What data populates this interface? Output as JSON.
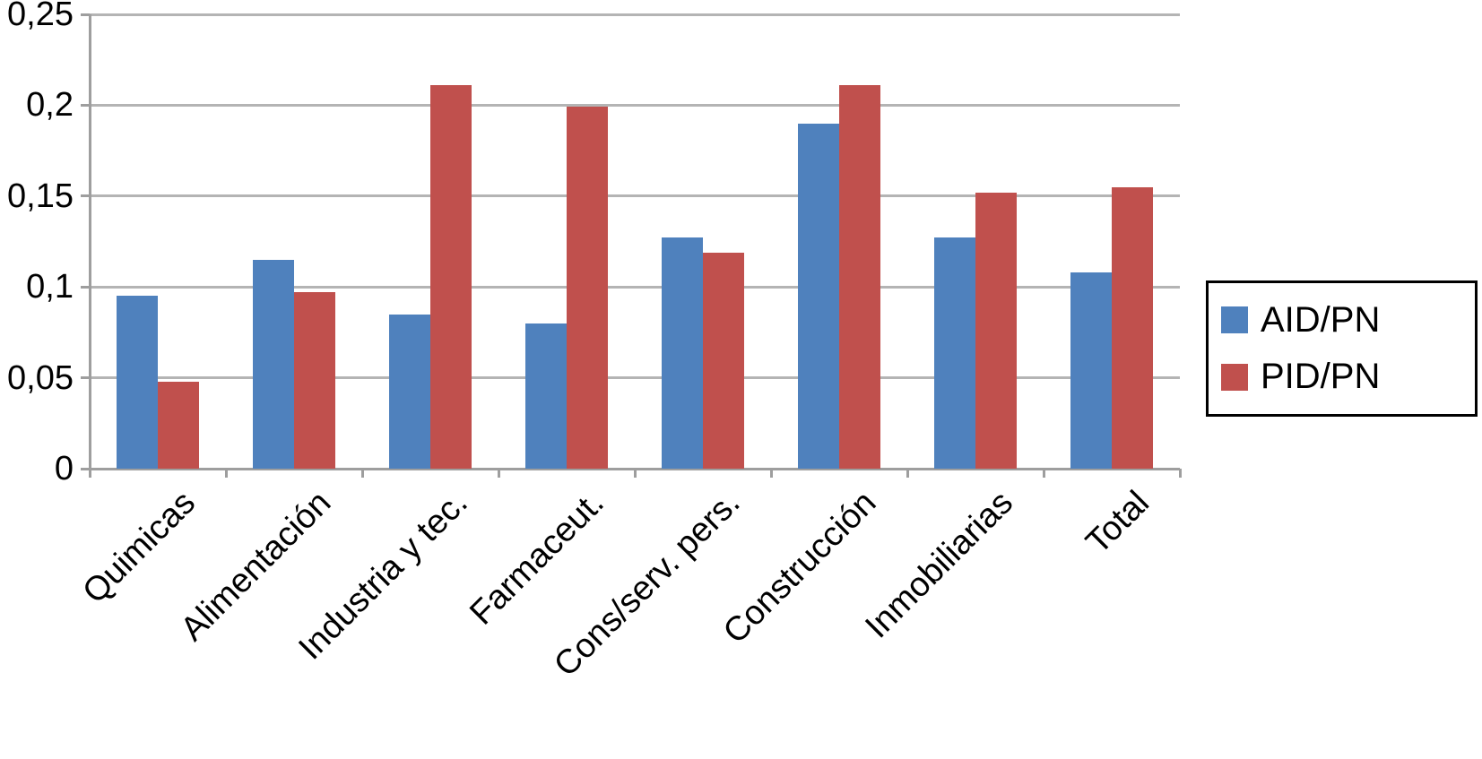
{
  "chart_data": {
    "type": "bar",
    "title": "",
    "categories": [
      "Quimicas",
      "Alimentación",
      "Industria y tec.",
      "Farmaceut.",
      "Cons/serv. pers.",
      "Construcción",
      "Inmobiliarias",
      "Total"
    ],
    "series": [
      {
        "name": "AID/PN",
        "color": "#4F81BD",
        "values": [
          0.095,
          0.115,
          0.085,
          0.08,
          0.127,
          0.19,
          0.127,
          0.108
        ]
      },
      {
        "name": "PID/PN",
        "color": "#C0504D",
        "values": [
          0.048,
          0.097,
          0.211,
          0.199,
          0.119,
          0.211,
          0.152,
          0.155
        ]
      }
    ],
    "xlabel": "",
    "ylabel": "",
    "ylim": [
      0,
      0.25
    ],
    "ytick_values": [
      0,
      0.05,
      0.1,
      0.15,
      0.2,
      0.25
    ],
    "ytick_labels": [
      "0",
      "0,05",
      "0,1",
      "0,15",
      "0,2",
      "0,25"
    ],
    "decimal_separator": ",",
    "grid": "horizontal",
    "legend_position": "right"
  }
}
